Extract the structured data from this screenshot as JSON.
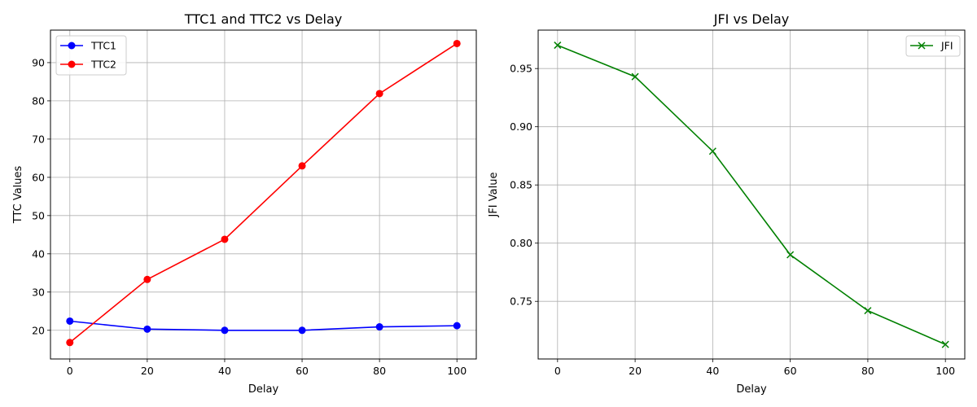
{
  "chart_data": [
    {
      "type": "line",
      "title": "TTC1 and TTC2 vs Delay",
      "xlabel": "Delay",
      "ylabel": "TTC Values",
      "x": [
        0,
        20,
        40,
        60,
        80,
        100
      ],
      "xlim": [
        -5,
        105
      ],
      "ylim": [
        12.5,
        98.5
      ],
      "xticks": [
        0,
        20,
        40,
        60,
        80,
        100
      ],
      "yticks": [
        20,
        30,
        40,
        50,
        60,
        70,
        80,
        90
      ],
      "grid": true,
      "legend_position": "top-left",
      "series": [
        {
          "name": "TTC1",
          "color": "#0000ff",
          "marker": "circle",
          "values": [
            22.4,
            20.3,
            20.0,
            20.0,
            20.9,
            21.2
          ]
        },
        {
          "name": "TTC2",
          "color": "#ff0000",
          "marker": "circle",
          "values": [
            16.8,
            33.3,
            43.8,
            63.0,
            81.9,
            95.0
          ]
        }
      ]
    },
    {
      "type": "line",
      "title": "JFI vs Delay",
      "xlabel": "Delay",
      "ylabel": "JFI Value",
      "x": [
        0,
        20,
        40,
        60,
        80,
        100
      ],
      "xlim": [
        -5,
        105
      ],
      "ylim": [
        0.7005,
        0.983
      ],
      "xticks": [
        0,
        20,
        40,
        60,
        80,
        100
      ],
      "yticks": [
        0.75,
        0.8,
        0.85,
        0.9,
        0.95
      ],
      "ytick_decimals": 2,
      "grid": true,
      "legend_position": "top-right",
      "series": [
        {
          "name": "JFI",
          "color": "#008000",
          "marker": "x",
          "values": [
            0.97,
            0.943,
            0.879,
            0.79,
            0.742,
            0.713
          ]
        }
      ]
    }
  ]
}
